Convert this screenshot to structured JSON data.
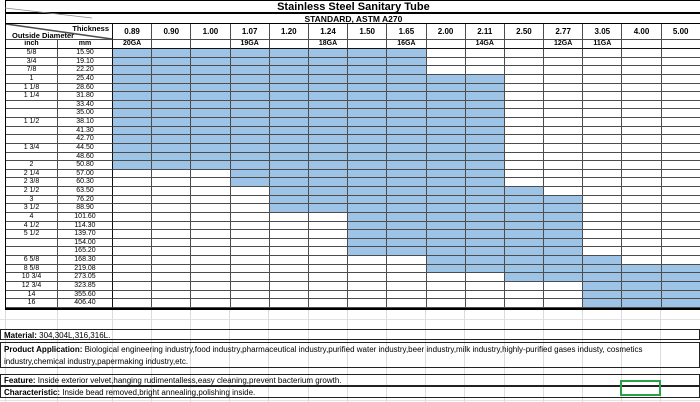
{
  "title": "Stainless Steel Sanitary Tube",
  "subtitle": "STANDARD, ASTM A270",
  "header": {
    "thickness_label": "Thickness",
    "outside_diameter_label": "Outside Diameter",
    "inch_label": "inch",
    "mm_label": "mm",
    "thickness_values": [
      "0.89",
      "0.90",
      "1.00",
      "1.07",
      "1.20",
      "1.24",
      "1.50",
      "1.65",
      "2.00",
      "2.11",
      "2.50",
      "2.77",
      "3.05",
      "4.00",
      "5.00"
    ],
    "gauge_labels": [
      "20GA",
      "",
      "",
      "19GA",
      "",
      "18GA",
      "",
      "16GA",
      "",
      "14GA",
      "",
      "12GA",
      "11GA",
      "",
      ""
    ]
  },
  "rows": [
    {
      "inch": "5/8",
      "mm": "15.90",
      "blue": [
        0,
        7
      ]
    },
    {
      "inch": "3/4",
      "mm": "19.10",
      "blue": [
        0,
        7
      ]
    },
    {
      "inch": "7/8",
      "mm": "22.20",
      "blue": [
        0,
        7
      ]
    },
    {
      "inch": "1",
      "mm": "25.40",
      "blue": [
        0,
        9
      ]
    },
    {
      "inch": "1 1/8",
      "mm": "28.60",
      "blue": [
        0,
        9
      ]
    },
    {
      "inch": "1 1/4",
      "mm": "31.80",
      "blue": [
        0,
        9
      ]
    },
    {
      "inch": "",
      "mm": "33.40",
      "blue": [
        0,
        9
      ]
    },
    {
      "inch": "",
      "mm": "35.00",
      "blue": [
        0,
        9
      ]
    },
    {
      "inch": "1 1/2",
      "mm": "38.10",
      "blue": [
        0,
        9
      ]
    },
    {
      "inch": "",
      "mm": "41.30",
      "blue": [
        0,
        9
      ]
    },
    {
      "inch": "",
      "mm": "42.70",
      "blue": [
        0,
        9
      ]
    },
    {
      "inch": "1 3/4",
      "mm": "44.50",
      "blue": [
        0,
        9
      ]
    },
    {
      "inch": "",
      "mm": "48.60",
      "blue": [
        0,
        9
      ]
    },
    {
      "inch": "2",
      "mm": "50.80",
      "blue": [
        0,
        9
      ]
    },
    {
      "inch": "2 1/4",
      "mm": "57.00",
      "blue": [
        3,
        9
      ]
    },
    {
      "inch": "2 3/8",
      "mm": "60.30",
      "blue": [
        3,
        9
      ]
    },
    {
      "inch": "2 1/2",
      "mm": "63.50",
      "blue": [
        4,
        10
      ]
    },
    {
      "inch": "3",
      "mm": "76.20",
      "blue": [
        4,
        11
      ]
    },
    {
      "inch": "3 1/2",
      "mm": "88.90",
      "blue": [
        4,
        11
      ]
    },
    {
      "inch": "4",
      "mm": "101.60",
      "blue": [
        6,
        11
      ]
    },
    {
      "inch": "4 1/2",
      "mm": "114.30",
      "blue": [
        6,
        11
      ]
    },
    {
      "inch": "5 1/2",
      "mm": "139.70",
      "blue": [
        6,
        11
      ]
    },
    {
      "inch": "",
      "mm": "154.00",
      "blue": [
        6,
        11
      ]
    },
    {
      "inch": "",
      "mm": "165.20",
      "blue": [
        6,
        11
      ]
    },
    {
      "inch": "6 5/8",
      "mm": "168.30",
      "blue": [
        8,
        12
      ]
    },
    {
      "inch": "8 5/8",
      "mm": "219.08",
      "blue": [
        8,
        14
      ]
    },
    {
      "inch": "10 3/4",
      "mm": "273.05",
      "blue": [
        10,
        14
      ]
    },
    {
      "inch": "12 3/4",
      "mm": "323.85",
      "blue": [
        12,
        14
      ]
    },
    {
      "inch": "14",
      "mm": "355.60",
      "blue": [
        12,
        14
      ]
    },
    {
      "inch": "16",
      "mm": "406.40",
      "blue": [
        12,
        14
      ]
    }
  ],
  "notes": [
    {
      "label": "Material:",
      "text": " 304,304L,316,316L."
    },
    {
      "label": "Product Application:",
      "text": " Biological engineering industry,food industry,pharmaceutical industry,purified water industry,beer industry,milk industry,highly-purified gases industy, cosmetics industry,chemical industry,papermaking industry,etc."
    },
    {
      "label": "Feature:",
      "text": " Inside exterior velvet,hanging rudimentalless,easy cleaning,prevent bacterium growth."
    },
    {
      "label": "Characteristic:",
      "text": " Inside bead removed,bright annealing,polishing inside."
    }
  ],
  "colors": {
    "highlight": "#9DC3E6",
    "grid_line": "#4d4d4d",
    "selection_border": "#27A343"
  }
}
